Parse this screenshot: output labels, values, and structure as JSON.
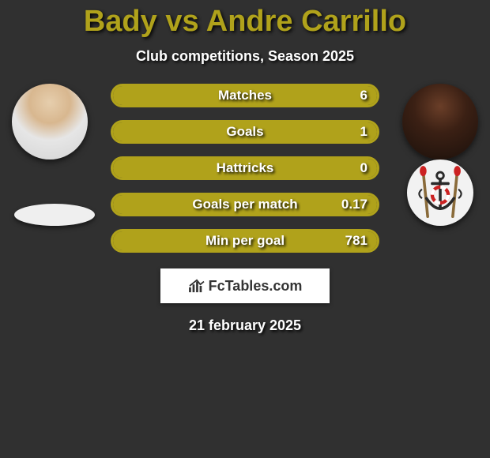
{
  "title_color": "#b0a21b",
  "title": "Bady vs Andre Carrillo",
  "subtitle": "Club competitions, Season 2025",
  "bar_border_color": "#b0a21b",
  "bar_fill_color": "#b0a21b",
  "bar_bg_color": "#303030",
  "stats": [
    {
      "label": "Matches",
      "right_value": "6",
      "fill_pct": 100
    },
    {
      "label": "Goals",
      "right_value": "1",
      "fill_pct": 100
    },
    {
      "label": "Hattricks",
      "right_value": "0",
      "fill_pct": 100
    },
    {
      "label": "Goals per match",
      "right_value": "0.17",
      "fill_pct": 100
    },
    {
      "label": "Min per goal",
      "right_value": "781",
      "fill_pct": 100
    }
  ],
  "logo_text": "FcTables.com",
  "date_text": "21 february 2025",
  "crest_colors": {
    "outer": "#f2f2f2",
    "anchor": "#2a2a2a",
    "red": "#c22",
    "paddle": "#8a6b3a"
  }
}
